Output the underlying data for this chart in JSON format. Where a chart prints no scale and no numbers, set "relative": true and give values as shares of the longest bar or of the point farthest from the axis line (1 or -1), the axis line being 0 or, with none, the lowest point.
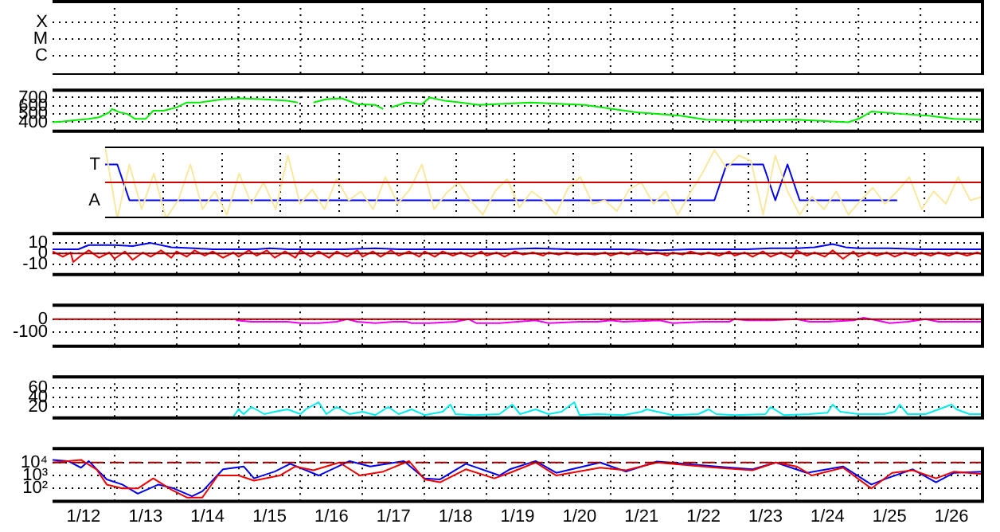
{
  "chart_data": [
    {
      "type": "other",
      "annotations": [
        "X",
        "M",
        "C"
      ]
    },
    {
      "type": "line",
      "grid": true,
      "tick_labels": "y",
      "xlim": [
        "--01-12",
        "--01-27"
      ],
      "ylim": [
        290,
        790
      ],
      "yticks": [
        400,
        500,
        600,
        700
      ],
      "xticks": [
        {
          "value": "--01-12T12:00",
          "label": "1/12"
        },
        {
          "value": "--01-13",
          "label": null
        },
        {
          "value": "--01-13T12:00",
          "label": "1/13"
        },
        {
          "value": "--01-14",
          "label": null
        },
        {
          "value": "--01-14T12:00",
          "label": "1/14"
        },
        {
          "value": "--01-15",
          "label": null
        },
        {
          "value": "--01-15T12:00",
          "label": "1/15"
        },
        {
          "value": "--01-16",
          "label": null
        },
        {
          "value": "--01-16T12:00",
          "label": "1/16"
        },
        {
          "value": "--01-17",
          "label": null
        },
        {
          "value": "--01-17T12:00",
          "label": "1/17"
        },
        {
          "value": "--01-18",
          "label": null
        },
        {
          "value": "--01-18T12:00",
          "label": "1/18"
        },
        {
          "value": "--01-19",
          "label": null
        },
        {
          "value": "--01-19T12:00",
          "label": "1/19"
        },
        {
          "value": "--01-20",
          "label": null
        },
        {
          "value": "--01-20T12:00",
          "label": "1/20"
        },
        {
          "value": "--01-21",
          "label": null
        },
        {
          "value": "--01-21T12:00",
          "label": "1/21"
        },
        {
          "value": "--01-22",
          "label": null
        },
        {
          "value": "--01-22T12:00",
          "label": "1/22"
        },
        {
          "value": "--01-23",
          "label": null
        },
        {
          "value": "--01-23T12:00",
          "label": "1/23"
        },
        {
          "value": "--01-24",
          "label": null
        },
        {
          "value": "--01-24T12:00",
          "label": "1/24"
        },
        {
          "value": "--01-25",
          "label": null
        },
        {
          "value": "--01-25T12:00",
          "label": "1/25"
        },
        {
          "value": "--01-26",
          "label": null
        },
        {
          "value": "--01-26T12:00",
          "label": "1/26"
        }
      ],
      "series": [
        {
          "color": "#00ee00",
          "x": [
            "--01-12T00:00",
            "--01-12T04:00",
            "--01-12T07:00",
            "--01-12T14:00",
            "--01-12T18:00",
            "--01-12T22:00",
            "--01-12T23:00",
            "--01-13T02:00",
            "--01-13T05:00",
            "--01-13T08:00",
            "--01-13T12:00",
            "--01-13T15:00",
            "--01-13T19:00",
            "--01-14T00:00",
            "--01-14T04:00",
            "--01-14T09:00",
            "--01-14T18:00",
            "--01-15T00:00",
            "--01-15T09:00",
            "--01-15T19:00",
            "--01-15T23:00",
            "--01-16T01:00",
            "--01-16T05:00",
            "--01-16T10:00",
            "--01-16T16:00",
            "--01-16T22:00",
            "--01-17T05:00",
            "--01-17T08:00",
            "--01-17T10:00",
            "--01-17T11:00",
            "--01-17T17:00",
            "--01-17T23:00",
            "--01-18T02:00",
            "--01-18T08:00",
            "--01-18T14:00",
            "--01-18T21:00",
            "--01-19T17:00",
            "--01-20T14:00",
            "--01-21T10:00",
            "--01-22T03:00",
            "--01-22T13:00",
            "--01-23T04:00",
            "--01-24T00:00",
            "--01-24T20:00",
            "--01-25T00:00",
            "--01-25T05:00",
            "--01-25T17:00",
            "--01-26T03:00",
            "--01-26T13:00",
            "--01-27T00:00"
          ],
          "values": [
            400,
            410,
            420,
            440,
            460,
            520,
            560,
            520,
            500,
            440,
            440,
            540,
            540,
            580,
            640,
            640,
            680,
            690,
            680,
            660,
            640,
            null,
            640,
            680,
            690,
            620,
            610,
            560,
            null,
            580,
            640,
            620,
            700,
            660,
            640,
            610,
            640,
            610,
            520,
            480,
            430,
            420,
            430,
            400,
            440,
            530,
            500,
            480,
            440,
            430
          ]
        }
      ]
    },
    {
      "type": "line",
      "relative": true,
      "grid": "x",
      "annotations": [
        "T",
        "A"
      ],
      "categories": [
        null,
        null,
        null,
        null,
        null,
        null,
        null,
        null,
        null,
        null,
        null,
        null,
        null,
        null,
        null,
        null,
        null,
        null,
        null,
        null,
        null,
        null,
        null,
        null,
        null,
        null,
        null,
        null,
        null,
        null,
        null,
        null,
        null,
        null,
        null,
        null,
        null,
        null,
        null,
        null,
        null,
        null,
        null,
        null,
        null,
        null,
        null,
        null,
        null,
        null,
        null,
        null,
        null,
        null,
        null,
        null,
        null,
        null,
        null,
        null,
        null,
        null,
        null,
        null,
        null,
        null,
        null,
        null,
        null,
        null,
        null,
        null,
        null
      ],
      "ref_lines": [
        {
          "axis": "y",
          "value": 0,
          "color": "#cc0000"
        }
      ],
      "series": [
        {
          "color": "#f8e8a0",
          "values": [
            1,
            -1,
            0.5,
            -0.75,
            0.25,
            -1,
            -0.5,
            0.5,
            -0.75,
            -0.25,
            -0.9,
            0.25,
            -0.6,
            0,
            -0.75,
            0.75,
            -0.6,
            -0.2,
            -0.75,
            0.1,
            -0.5,
            -0.25,
            -0.75,
            0.15,
            -0.6,
            -0.2,
            0.5,
            -0.75,
            -0.3,
            0,
            -0.5,
            -0.9,
            -0.25,
            0.1,
            -0.7,
            -0.25,
            -0.5,
            -0.9,
            -0.15,
            0.15,
            -0.6,
            -0.5,
            -0.8,
            -0.2,
            0,
            -0.6,
            -0.25,
            -0.9,
            -0.3,
            0.25,
            0.9,
            0.4,
            0.75,
            0.6,
            -0.9,
            0.75,
            -0.25,
            -0.9,
            -0.4,
            -0.75,
            -0.25,
            -0.9,
            -0.5,
            -0.15,
            -0.6,
            -0.25,
            0.15,
            -0.75,
            -0.25,
            -0.6,
            0.15,
            -0.5,
            -0.4
          ]
        },
        {
          "color": "#0000ee",
          "values": [
            0.5,
            0.5,
            -0.5,
            -0.5,
            -0.5,
            -0.5,
            -0.5,
            -0.5,
            -0.5,
            -0.5,
            -0.5,
            -0.5,
            -0.5,
            -0.5,
            -0.5,
            -0.5,
            -0.5,
            -0.5,
            -0.5,
            -0.5,
            -0.5,
            -0.5,
            -0.5,
            -0.5,
            -0.5,
            -0.5,
            -0.5,
            -0.5,
            -0.5,
            -0.5,
            -0.5,
            -0.5,
            -0.5,
            -0.5,
            -0.5,
            -0.5,
            -0.5,
            -0.5,
            -0.5,
            -0.5,
            -0.5,
            -0.5,
            -0.5,
            -0.5,
            -0.5,
            -0.5,
            -0.5,
            -0.5,
            -0.5,
            -0.5,
            -0.5,
            0.5,
            0.5,
            0.5,
            0.5,
            -0.5,
            0.5,
            -0.5,
            -0.5,
            -0.5,
            -0.5,
            -0.5,
            -0.5,
            -0.5,
            -0.5,
            -0.5,
            null,
            null,
            null,
            null,
            null,
            null,
            null
          ]
        }
      ]
    },
    {
      "type": "line",
      "grid": true,
      "tick_labels": "y",
      "xlim": [
        "--01-12",
        "--01-27"
      ],
      "ylim": [
        -20,
        19
      ],
      "yticks": [
        10,
        0,
        -10
      ],
      "xticks": [
        {
          "value": "--01-12T12:00",
          "label": "1/12"
        },
        {
          "value": "--01-13",
          "label": null
        },
        {
          "value": "--01-13T12:00",
          "label": "1/13"
        },
        {
          "value": "--01-14",
          "label": null
        },
        {
          "value": "--01-14T12:00",
          "label": "1/14"
        },
        {
          "value": "--01-15",
          "label": null
        },
        {
          "value": "--01-15T12:00",
          "label": "1/15"
        },
        {
          "value": "--01-16",
          "label": null
        },
        {
          "value": "--01-16T12:00",
          "label": "1/16"
        },
        {
          "value": "--01-17",
          "label": null
        },
        {
          "value": "--01-17T12:00",
          "label": "1/17"
        },
        {
          "value": "--01-18",
          "label": null
        },
        {
          "value": "--01-18T12:00",
          "label": "1/18"
        },
        {
          "value": "--01-19",
          "label": null
        },
        {
          "value": "--01-19T12:00",
          "label": "1/19"
        },
        {
          "value": "--01-20",
          "label": null
        },
        {
          "value": "--01-20T12:00",
          "label": "1/20"
        },
        {
          "value": "--01-21",
          "label": null
        },
        {
          "value": "--01-21T12:00",
          "label": "1/21"
        },
        {
          "value": "--01-22",
          "label": null
        },
        {
          "value": "--01-22T12:00",
          "label": "1/22"
        },
        {
          "value": "--01-23",
          "label": null
        },
        {
          "value": "--01-23T12:00",
          "label": "1/23"
        },
        {
          "value": "--01-24",
          "label": null
        },
        {
          "value": "--01-24T12:00",
          "label": "1/24"
        },
        {
          "value": "--01-25",
          "label": null
        },
        {
          "value": "--01-25T12:00",
          "label": "1/25"
        },
        {
          "value": "--01-26",
          "label": null
        },
        {
          "value": "--01-26T12:00",
          "label": "1/26"
        }
      ],
      "ref_lines": [
        {
          "axis": "y",
          "value": 0,
          "color": "#990000"
        }
      ],
      "series": [
        {
          "color": "#0000ee",
          "x": [
            "--01-12T00:00",
            "--01-12T10:00",
            "--01-12T14:00",
            "--01-13T00:00",
            "--01-13T07:00",
            "--01-13T14:00",
            "--01-13T22:00",
            "--01-14T07:00",
            "--01-14T14:00",
            "--01-15T00:00",
            "--01-15T07:00",
            "--01-15T12:00",
            "--01-15T19:00",
            "--01-16T07:00",
            "--01-16T17:00",
            "--01-17T05:00",
            "--01-17T14:00",
            "--01-18T05:00",
            "--01-18T19:00",
            "--01-19T07:00",
            "--01-19T19:00",
            "--01-20T07:00",
            "--01-20T19:00",
            "--01-21T07:00",
            "--01-21T19:00",
            "--01-22T07:00",
            "--01-22T19:00",
            "--01-23T05:00",
            "--01-23T14:00",
            "--01-24T00:00",
            "--01-24T07:00",
            "--01-24T14:00",
            "--01-24T19:00",
            "--01-25T00:00",
            "--01-25T12:00",
            "--01-26T00:00",
            "--01-26T12:00",
            "--01-27T00:00"
          ],
          "values": [
            4,
            4,
            8,
            8,
            7,
            10,
            6,
            5,
            4,
            4,
            4,
            5,
            4,
            4,
            4,
            5,
            4,
            4,
            4,
            4,
            5,
            4,
            4,
            4,
            3,
            4,
            4,
            4,
            5,
            5,
            6,
            9,
            6,
            5,
            5,
            4,
            4,
            4
          ]
        },
        {
          "color": "#ee0000",
          "x": [
            "--01-12T00:00",
            "--01-12T04:00",
            "--01-12T07:00",
            "--01-12T08:00",
            "--01-12T11:00",
            "--01-12T14:00",
            "--01-12T18:00",
            "--01-12T22:00",
            "--01-13T00:00",
            "--01-13T04:00",
            "--01-13T07:00",
            "--01-13T11:00",
            "--01-13T14:00",
            "--01-13T18:00",
            "--01-13T22:00",
            "--01-14T00:00",
            "--01-14T04:00",
            "--01-14T07:00",
            "--01-14T11:00",
            "--01-14T14:00",
            "--01-14T18:00",
            "--01-14T22:00",
            "--01-15T00:00",
            "--01-15T04:00",
            "--01-15T07:00",
            "--01-15T11:00",
            "--01-15T14:00",
            "--01-15T18:00",
            "--01-15T22:00",
            "--01-16T00:00",
            "--01-16T04:00",
            "--01-16T07:00",
            "--01-16T11:00",
            "--01-16T14:00",
            "--01-16T18:00",
            "--01-16T22:00",
            "--01-17T00:00",
            "--01-17T04:00",
            "--01-17T07:00",
            "--01-17T11:00",
            "--01-17T14:00",
            "--01-17T18:00",
            "--01-17T22:00",
            "--01-18T00:00",
            "--01-18T04:00",
            "--01-18T07:00",
            "--01-18T11:00",
            "--01-18T14:00",
            "--01-18T18:00",
            "--01-18T22:00",
            "--01-19T00:00",
            "--01-19T04:00",
            "--01-19T07:00",
            "--01-19T11:00",
            "--01-19T14:00",
            "--01-19T18:00",
            "--01-19T22:00",
            "--01-20T00:00",
            "--01-20T04:00",
            "--01-20T07:00",
            "--01-20T11:00",
            "--01-20T14:00",
            "--01-20T18:00",
            "--01-20T22:00",
            "--01-21T00:00",
            "--01-21T04:00",
            "--01-21T07:00",
            "--01-21T11:00",
            "--01-21T14:00",
            "--01-21T18:00",
            "--01-21T22:00",
            "--01-22T00:00",
            "--01-22T04:00",
            "--01-22T07:00",
            "--01-22T11:00",
            "--01-22T14:00",
            "--01-22T18:00",
            "--01-22T22:00",
            "--01-23T00:00",
            "--01-23T04:00",
            "--01-23T07:00",
            "--01-23T11:00",
            "--01-23T14:00",
            "--01-23T18:00",
            "--01-23T22:00",
            "--01-24T00:00",
            "--01-24T04:00",
            "--01-24T07:00",
            "--01-24T11:00",
            "--01-24T14:00",
            "--01-24T18:00",
            "--01-24T22:00",
            "--01-25T00:00",
            "--01-25T04:00",
            "--01-25T07:00",
            "--01-25T11:00",
            "--01-25T14:00",
            "--01-25T18:00",
            "--01-25T22:00",
            "--01-26T00:00",
            "--01-26T04:00",
            "--01-26T07:00",
            "--01-26T11:00",
            "--01-26T14:00",
            "--01-26T18:00",
            "--01-26T22:00",
            "--01-27T00:00"
          ],
          "values": [
            2,
            -3,
            1,
            -8,
            -2,
            3,
            -4,
            1,
            -5,
            2,
            -6,
            1,
            -3,
            3,
            -4,
            2,
            -3,
            3,
            -2,
            2,
            -4,
            1,
            -3,
            3,
            -2,
            3,
            -4,
            2,
            -4,
            3,
            -3,
            2,
            -4,
            2,
            -3,
            3,
            -3,
            2,
            -3,
            3,
            -2,
            2,
            -3,
            2,
            -3,
            2,
            -2,
            1,
            -3,
            2,
            -2,
            1,
            -3,
            2,
            -1,
            1,
            -2,
            1,
            -1,
            1,
            -1,
            0,
            -1,
            1,
            -2,
            1,
            -1,
            3,
            -1,
            1,
            -2,
            1,
            -1,
            2,
            -1,
            1,
            -2,
            2,
            -2,
            1,
            -3,
            2,
            -3,
            1,
            -4,
            3,
            -2,
            1,
            -3,
            3,
            -5,
            2,
            -3,
            1,
            -2,
            1,
            -3,
            1,
            -2,
            1,
            -2,
            1,
            -2,
            1,
            -2,
            1,
            -1
          ]
        }
      ]
    },
    {
      "type": "line",
      "grid": true,
      "tick_labels": "y",
      "xlim": [
        "--01-12",
        "--01-27"
      ],
      "ylim": [
        -205,
        105
      ],
      "yticks": [
        0,
        -100
      ],
      "xticks": [
        {
          "value": "--01-12T12:00",
          "label": "1/12"
        },
        {
          "value": "--01-13",
          "label": null
        },
        {
          "value": "--01-13T12:00",
          "label": "1/13"
        },
        {
          "value": "--01-14",
          "label": null
        },
        {
          "value": "--01-14T12:00",
          "label": "1/14"
        },
        {
          "value": "--01-15",
          "label": null
        },
        {
          "value": "--01-15T12:00",
          "label": "1/15"
        },
        {
          "value": "--01-16",
          "label": null
        },
        {
          "value": "--01-16T12:00",
          "label": "1/16"
        },
        {
          "value": "--01-17",
          "label": null
        },
        {
          "value": "--01-17T12:00",
          "label": "1/17"
        },
        {
          "value": "--01-18",
          "label": null
        },
        {
          "value": "--01-18T12:00",
          "label": "1/18"
        },
        {
          "value": "--01-19",
          "label": null
        },
        {
          "value": "--01-19T12:00",
          "label": "1/19"
        },
        {
          "value": "--01-20",
          "label": null
        },
        {
          "value": "--01-20T12:00",
          "label": "1/20"
        },
        {
          "value": "--01-21",
          "label": null
        },
        {
          "value": "--01-21T12:00",
          "label": "1/21"
        },
        {
          "value": "--01-22",
          "label": null
        },
        {
          "value": "--01-22T12:00",
          "label": "1/22"
        },
        {
          "value": "--01-23",
          "label": null
        },
        {
          "value": "--01-23T12:00",
          "label": "1/23"
        },
        {
          "value": "--01-24",
          "label": null
        },
        {
          "value": "--01-24T12:00",
          "label": "1/24"
        },
        {
          "value": "--01-25",
          "label": null
        },
        {
          "value": "--01-25T12:00",
          "label": "1/25"
        },
        {
          "value": "--01-26",
          "label": null
        },
        {
          "value": "--01-26T12:00",
          "label": "1/26"
        }
      ],
      "ref_lines": [
        {
          "axis": "y",
          "value": 0,
          "color": "#990000"
        }
      ],
      "series": [
        {
          "color": "#ee00ee",
          "x": [
            "--01-14T23:00",
            "--01-15T05:00",
            "--01-15T12:00",
            "--01-15T19:00",
            "--01-16T00:00",
            "--01-16T07:00",
            "--01-16T14:00",
            "--01-16T18:00",
            "--01-16T22:00",
            "--01-17T05:00",
            "--01-17T12:00",
            "--01-17T17:00",
            "--01-17T19:00",
            "--01-18T02:00",
            "--01-18T12:00",
            "--01-18T17:00",
            "--01-18T20:00",
            "--01-19T05:00",
            "--01-19T12:00",
            "--01-19T19:00",
            "--01-20T00:00",
            "--01-20T12:00",
            "--01-20T19:00",
            "--01-21T00:00",
            "--01-21T05:00",
            "--01-21T19:00",
            "--01-22T00:00",
            "--01-22T12:00",
            "--01-22T22:00",
            "--01-23T00:00",
            "--01-23T05:00",
            "--01-23T14:00",
            "--01-24T00:00",
            "--01-24T05:00",
            "--01-24T12:00",
            "--01-24T22:00",
            "--01-25T02:00",
            "--01-25T07:00",
            "--01-25T12:00",
            "--01-25T19:00",
            "--01-26T02:00",
            "--01-26T07:00",
            "--01-26T14:00",
            "--01-27T00:00"
          ],
          "values": [
            -10,
            -20,
            -20,
            -20,
            -30,
            -30,
            -20,
            0,
            -20,
            -30,
            -20,
            -20,
            -30,
            -30,
            -20,
            0,
            -30,
            -30,
            -20,
            -10,
            -30,
            -20,
            -20,
            -10,
            -20,
            -10,
            -30,
            -20,
            -20,
            0,
            -10,
            -10,
            0,
            -20,
            -20,
            -10,
            10,
            -10,
            -30,
            -20,
            0,
            -20,
            -20,
            -20
          ]
        }
      ]
    },
    {
      "type": "line",
      "grid": true,
      "tick_labels": "y",
      "xlim": [
        "--01-12",
        "--01-27"
      ],
      "ylim": [
        -3,
        83
      ],
      "yticks": [
        20,
        40,
        60
      ],
      "xticks": [
        {
          "value": "--01-12T12:00",
          "label": "1/12"
        },
        {
          "value": "--01-13",
          "label": null
        },
        {
          "value": "--01-13T12:00",
          "label": "1/13"
        },
        {
          "value": "--01-14",
          "label": null
        },
        {
          "value": "--01-14T12:00",
          "label": "1/14"
        },
        {
          "value": "--01-15",
          "label": null
        },
        {
          "value": "--01-15T12:00",
          "label": "1/15"
        },
        {
          "value": "--01-16",
          "label": null
        },
        {
          "value": "--01-16T12:00",
          "label": "1/16"
        },
        {
          "value": "--01-17",
          "label": null
        },
        {
          "value": "--01-17T12:00",
          "label": "1/17"
        },
        {
          "value": "--01-18",
          "label": null
        },
        {
          "value": "--01-18T12:00",
          "label": "1/18"
        },
        {
          "value": "--01-19",
          "label": null
        },
        {
          "value": "--01-19T12:00",
          "label": "1/19"
        },
        {
          "value": "--01-20",
          "label": null
        },
        {
          "value": "--01-20T12:00",
          "label": "1/20"
        },
        {
          "value": "--01-21",
          "label": null
        },
        {
          "value": "--01-21T12:00",
          "label": "1/21"
        },
        {
          "value": "--01-22",
          "label": null
        },
        {
          "value": "--01-22T12:00",
          "label": "1/22"
        },
        {
          "value": "--01-23",
          "label": null
        },
        {
          "value": "--01-23T12:00",
          "label": "1/23"
        },
        {
          "value": "--01-24",
          "label": null
        },
        {
          "value": "--01-24T12:00",
          "label": "1/24"
        },
        {
          "value": "--01-25",
          "label": null
        },
        {
          "value": "--01-25T12:00",
          "label": "1/25"
        },
        {
          "value": "--01-26",
          "label": null
        },
        {
          "value": "--01-26T12:00",
          "label": "1/26"
        }
      ],
      "series": [
        {
          "color": "#00eeee",
          "x": [
            "--01-14T22:00",
            "--01-15T00:00",
            "--01-15T02:00",
            "--01-15T05:00",
            "--01-15T10:00",
            "--01-15T14:00",
            "--01-15T19:00",
            "--01-16T00:00",
            "--01-16T02:00",
            "--01-16T07:00",
            "--01-16T10:00",
            "--01-16T14:00",
            "--01-16T19:00",
            "--01-17T00:00",
            "--01-17T05:00",
            "--01-17T10:00",
            "--01-17T14:00",
            "--01-17T19:00",
            "--01-18T00:00",
            "--01-18T07:00",
            "--01-18T10:00",
            "--01-18T12:00",
            "--01-18T19:00",
            "--01-19T05:00",
            "--01-19T10:00",
            "--01-19T13:00",
            "--01-19T19:00",
            "--01-20T00:00",
            "--01-20T05:00",
            "--01-20T10:00",
            "--01-20T12:00",
            "--01-20T19:00",
            "--01-21T05:00",
            "--01-21T12:00",
            "--01-21T14:00",
            "--01-22T00:00",
            "--01-22T10:00",
            "--01-22T14:00",
            "--01-22T17:00",
            "--01-23T00:00",
            "--01-23T12:00",
            "--01-23T14:00",
            "--01-23T19:00",
            "--01-24T05:00",
            "--01-24T12:00",
            "--01-24T14:00",
            "--01-24T17:00",
            "--01-25T00:00",
            "--01-25T10:00",
            "--01-25T14:00",
            "--01-25T16:00",
            "--01-25T19:00",
            "--01-26T02:00",
            "--01-26T12:00",
            "--01-26T14:00",
            "--01-26T19:00",
            "--01-27T00:00"
          ],
          "values": [
            0,
            15,
            5,
            20,
            5,
            10,
            15,
            5,
            15,
            30,
            5,
            20,
            5,
            10,
            3,
            20,
            5,
            15,
            3,
            10,
            25,
            5,
            3,
            5,
            25,
            5,
            15,
            5,
            10,
            30,
            3,
            5,
            3,
            10,
            15,
            3,
            5,
            15,
            5,
            3,
            5,
            20,
            3,
            5,
            8,
            25,
            10,
            5,
            5,
            10,
            25,
            5,
            5,
            25,
            15,
            5,
            5
          ]
        }
      ]
    },
    {
      "type": "line",
      "log": true,
      "grid": true,
      "xlim": [
        "--01-12",
        "--01-27"
      ],
      "ylim": [
        10,
        120000
      ],
      "yticks": [
        {
          "value": 100,
          "label": "10²"
        },
        {
          "value": 1000,
          "label": "10³"
        },
        {
          "value": 10000,
          "label": "10⁴"
        }
      ],
      "xticks": [
        {
          "value": "--01-12T12:00",
          "label": "1/12"
        },
        {
          "value": "--01-13",
          "label": null
        },
        {
          "value": "--01-13T12:00",
          "label": "1/13"
        },
        {
          "value": "--01-14",
          "label": null
        },
        {
          "value": "--01-14T12:00",
          "label": "1/14"
        },
        {
          "value": "--01-15",
          "label": null
        },
        {
          "value": "--01-15T12:00",
          "label": "1/15"
        },
        {
          "value": "--01-16",
          "label": null
        },
        {
          "value": "--01-16T12:00",
          "label": "1/16"
        },
        {
          "value": "--01-17",
          "label": null
        },
        {
          "value": "--01-17T12:00",
          "label": "1/17"
        },
        {
          "value": "--01-18",
          "label": null
        },
        {
          "value": "--01-18T12:00",
          "label": "1/18"
        },
        {
          "value": "--01-19",
          "label": null
        },
        {
          "value": "--01-19T12:00",
          "label": "1/19"
        },
        {
          "value": "--01-20",
          "label": null
        },
        {
          "value": "--01-20T12:00",
          "label": "1/20"
        },
        {
          "value": "--01-21",
          "label": null
        },
        {
          "value": "--01-21T12:00",
          "label": "1/21"
        },
        {
          "value": "--01-22",
          "label": null
        },
        {
          "value": "--01-22T12:00",
          "label": "1/22"
        },
        {
          "value": "--01-23",
          "label": null
        },
        {
          "value": "--01-23T12:00",
          "label": "1/23"
        },
        {
          "value": "--01-24",
          "label": null
        },
        {
          "value": "--01-24T12:00",
          "label": "1/24"
        },
        {
          "value": "--01-25",
          "label": null
        },
        {
          "value": "--01-25T12:00",
          "label": "1/25"
        },
        {
          "value": "--01-26",
          "label": null
        },
        {
          "value": "--01-26T12:00",
          "label": "1/26"
        }
      ],
      "ref_lines": [
        {
          "axis": "y",
          "value": 10000,
          "color": "#990000",
          "line_style": "dashed"
        }
      ],
      "series": [
        {
          "color": "#ee0000",
          "x": [
            "--01-12T00:00",
            "--01-12T11:00",
            "--01-12T17:00",
            "--01-12T21:00",
            "--01-13T03:00",
            "--01-13T09:00",
            "--01-13T15:00",
            "--01-13T22:00",
            "--01-14T04:00",
            "--01-14T10:00",
            "--01-14T16:00",
            "--01-15T00:00",
            "--01-15T06:00",
            "--01-15T16:00",
            "--01-15T22:00",
            "--01-16T05:00",
            "--01-16T15:00",
            "--01-16T23:00",
            "--01-17T08:00",
            "--01-17T18:00",
            "--01-18T00:00",
            "--01-18T06:00",
            "--01-18T16:00",
            "--01-19T03:00",
            "--01-19T09:00",
            "--01-19T19:00",
            "--01-20T03:00",
            "--01-20T20:00",
            "--01-21T06:00",
            "--01-21T18:00",
            "--01-22T17:00",
            "--01-23T07:00",
            "--01-23T16:00",
            "--01-24T00:00",
            "--01-24T06:00",
            "--01-24T18:00",
            "--01-25T05:00",
            "--01-25T13:00",
            "--01-25T21:00",
            "--01-26T06:00",
            "--01-26T13:00",
            "--01-27T00:00"
          ],
          "values": [
            10000,
            16000,
            3000,
            200,
            100,
            100,
            600,
            80,
            20,
            20,
            1000,
            1000,
            400,
            1000,
            5000,
            2500,
            10000,
            1000,
            2000,
            13000,
            500,
            300,
            3000,
            600,
            1600,
            10000,
            1000,
            4000,
            2500,
            10000,
            4000,
            2500,
            10000,
            5000,
            1000,
            4000,
            100,
            1600,
            2500,
            600,
            2000,
            1300
          ]
        },
        {
          "color": "#0000ee",
          "x": [
            "--01-12T00:00",
            "--01-12T06:00",
            "--01-12T11:00",
            "--01-12T14:00",
            "--01-12T18:00",
            "--01-12T21:00",
            "--01-13T03:00",
            "--01-13T09:00",
            "--01-13T17:00",
            "--01-13T23:00",
            "--01-14T06:00",
            "--01-14T10:00",
            "--01-14T18:00",
            "--01-15T02:00",
            "--01-15T06:00",
            "--01-15T14:00",
            "--01-15T20:00",
            "--01-16T07:00",
            "--01-16T19:00",
            "--01-17T03:00",
            "--01-17T16:00",
            "--01-18T00:00",
            "--01-18T06:00",
            "--01-18T16:00",
            "--01-19T05:00",
            "--01-19T09:00",
            "--01-19T19:00",
            "--01-20T03:00",
            "--01-20T20:00",
            "--01-21T06:00",
            "--01-21T18:00",
            "--01-22T17:00",
            "--01-23T07:00",
            "--01-23T16:00",
            "--01-24T04:00",
            "--01-24T18:00",
            "--01-25T05:00",
            "--01-25T11:00",
            "--01-25T21:00",
            "--01-26T06:00",
            "--01-26T13:00",
            "--01-27T00:00"
          ],
          "values": [
            16000,
            13000,
            4000,
            13000,
            2000,
            500,
            200,
            40,
            200,
            100,
            25,
            60,
            3000,
            5000,
            600,
            2000,
            8000,
            1000,
            13000,
            5000,
            13000,
            600,
            500,
            8000,
            1000,
            3000,
            13000,
            1600,
            10000,
            2000,
            12000,
            5000,
            3000,
            10000,
            1600,
            5000,
            200,
            600,
            3000,
            300,
            1600,
            2000
          ]
        }
      ]
    }
  ]
}
